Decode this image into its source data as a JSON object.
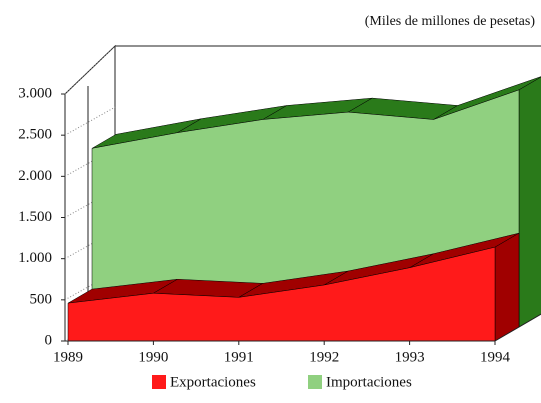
{
  "chart_data": {
    "type": "area",
    "unit_label": "(Miles de millones de pesetas)",
    "categories": [
      "1989",
      "1990",
      "1991",
      "1992",
      "1993",
      "1994"
    ],
    "series": [
      {
        "name": "Exportaciones",
        "color": "#ff1a1a",
        "values": [
          460,
          580,
          530,
          680,
          890,
          1140
        ]
      },
      {
        "name": "Importaciones",
        "color": "#90d080",
        "values": [
          2170,
          2360,
          2520,
          2610,
          2520,
          2880
        ]
      }
    ],
    "ylim": [
      0,
      3000
    ],
    "yticks": [
      0,
      500,
      {
        "value": 1000,
        "label": "1.000"
      },
      {
        "value": 1500,
        "label": "1.500"
      },
      {
        "value": 2000,
        "label": "2.000"
      },
      {
        "value": 2500,
        "label": "2.500"
      },
      {
        "value": 3000,
        "label": "3.000"
      }
    ],
    "legend": "bottom"
  }
}
